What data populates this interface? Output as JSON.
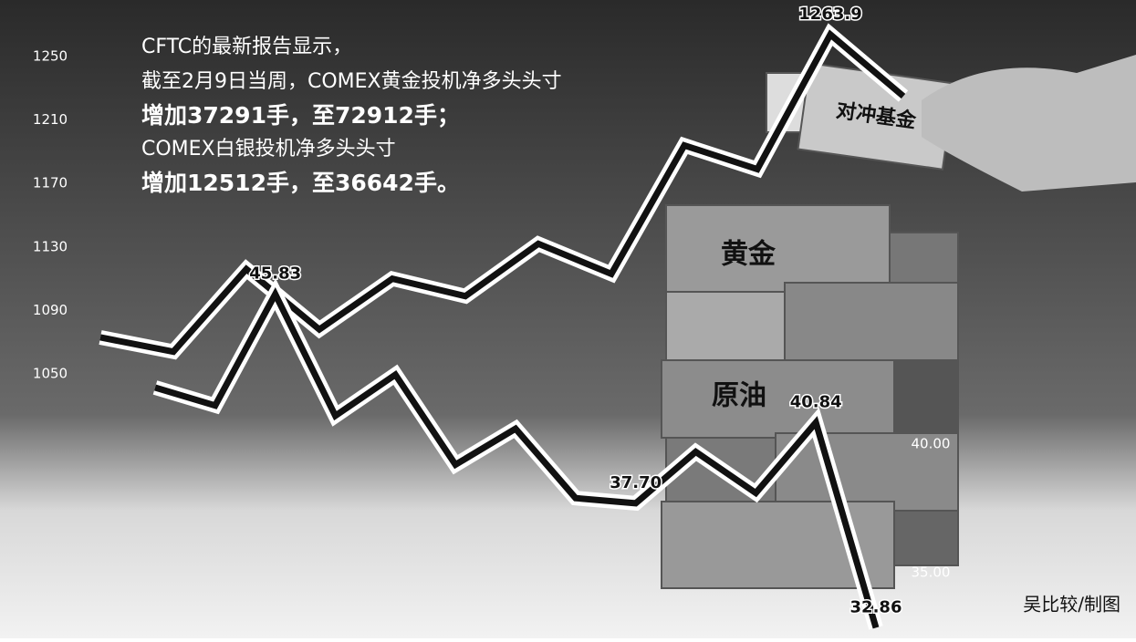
{
  "chart_data": [
    {
      "type": "line",
      "series": [
        {
          "color": "#111111",
          "values": [
            1073,
            1064,
            1116,
            1078,
            1110,
            1099,
            1132,
            1113,
            1194,
            1179,
            1263.9,
            1225
          ],
          "value_labels": [
            null,
            null,
            null,
            null,
            null,
            null,
            null,
            null,
            null,
            null,
            "1263.9",
            null
          ]
        }
      ],
      "ylim": [
        1050,
        1250
      ],
      "yticks": [
        1050,
        1090,
        1130,
        1170,
        1210,
        1250
      ]
    },
    {
      "type": "line",
      "series": [
        {
          "color": "#111111",
          "values": [
            42.2,
            41.5,
            45.83,
            41.1,
            42.7,
            39.2,
            40.6,
            37.9,
            37.7,
            39.7,
            38.1,
            40.84,
            32.86
          ],
          "value_labels": [
            null,
            null,
            "45.83",
            null,
            null,
            null,
            null,
            null,
            "37.70",
            null,
            null,
            "40.84",
            "32.86"
          ]
        }
      ],
      "y2lim": [
        35,
        40
      ],
      "y2ticks": [
        {
          "value": 40,
          "label": "40.00"
        },
        {
          "value": 35,
          "label": "35.00"
        }
      ]
    }
  ],
  "notes": [
    "CFTC的最新报告显示，",
    "截至2月9日当周，COMEX黄金投机净多头头寸",
    "增加37291手，至72912手；",
    "COMEX白银投机净多头头寸",
    "增加12512手，至36642手。"
  ],
  "labels": [
    "黄金",
    "原油",
    "对冲基金"
  ],
  "credit": "吴比较/制图"
}
